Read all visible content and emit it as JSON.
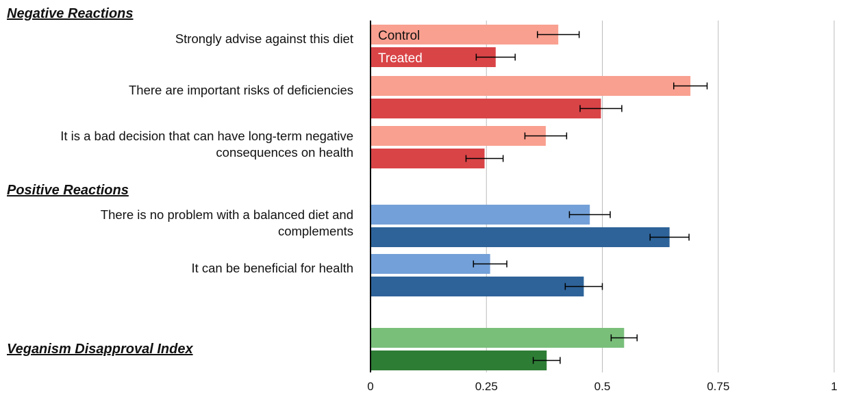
{
  "chart_data": {
    "type": "bar",
    "orientation": "horizontal",
    "xlim": [
      0,
      1
    ],
    "ticks": [
      "0",
      "0.25",
      "0.5",
      "0.75",
      "1"
    ],
    "tick_values": [
      0,
      0.25,
      0.5,
      0.75,
      1
    ],
    "grid": true,
    "legend": {
      "placement": "inside-first-bars",
      "entries": [
        "Control",
        "Treated"
      ]
    },
    "sections": [
      {
        "title": "Negative Reactions",
        "colors": {
          "Control": "#F9A090",
          "Treated": "#D94447"
        },
        "items": [
          {
            "label": [
              "Strongly advise against this diet"
            ],
            "control": 0.405,
            "control_err": 0.045,
            "treated": 0.27,
            "treated_err": 0.042
          },
          {
            "label": [
              "There are important risks of deficiencies"
            ],
            "control": 0.69,
            "control_err": 0.036,
            "treated": 0.497,
            "treated_err": 0.045
          },
          {
            "label": [
              "It is a bad decision that can have long-term negative",
              "consequences on health"
            ],
            "control": 0.378,
            "control_err": 0.045,
            "treated": 0.246,
            "treated_err": 0.04
          }
        ]
      },
      {
        "title": "Positive Reactions",
        "colors": {
          "Control": "#73A0D8",
          "Treated": "#2E6399"
        },
        "items": [
          {
            "label": [
              "There is no problem with a balanced diet and",
              "complements"
            ],
            "control": 0.473,
            "control_err": 0.044,
            "treated": 0.645,
            "treated_err": 0.042
          },
          {
            "label": [
              "It can be beneficial for health"
            ],
            "control": 0.258,
            "control_err": 0.036,
            "treated": 0.46,
            "treated_err": 0.04
          }
        ]
      },
      {
        "title": "Veganism Disapproval Index",
        "colors": {
          "Control": "#79BF7A",
          "Treated": "#2E7D35"
        },
        "items": [
          {
            "label": [],
            "control": 0.547,
            "control_err": 0.028,
            "treated": 0.38,
            "treated_err": 0.029
          }
        ]
      }
    ]
  },
  "colors": {
    "axis": "#000000",
    "grid": "#BBBBBB",
    "error_bar": "#000000",
    "legend_control_text": "#111111",
    "legend_treated_text": "#FFFFFF"
  }
}
